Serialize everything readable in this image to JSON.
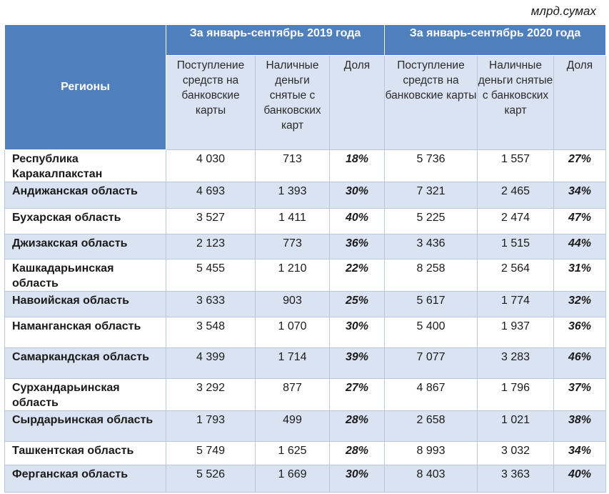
{
  "unit_label": "млрд.сумах",
  "header": {
    "regions_label": "Регионы",
    "period_2019": "За январь-сентябрь 2019 года",
    "period_2020": "За январь-сентябрь 2020 года",
    "col_income": "Поступление средств на банковские карты",
    "col_cash": "Наличные деньги снятые с банковских карт",
    "col_share": "Доля"
  },
  "rows": [
    {
      "region": "Республика Каракалпакстан",
      "v2019_in": "4 030",
      "v2019_cash": "713",
      "v2019_share": "18%",
      "v2020_in": "5 736",
      "v2020_cash": "1 557",
      "v2020_share": "27%"
    },
    {
      "region": "Андижанская область",
      "v2019_in": "4 693",
      "v2019_cash": "1 393",
      "v2019_share": "30%",
      "v2020_in": "7 321",
      "v2020_cash": "2 465",
      "v2020_share": "34%"
    },
    {
      "region": "Бухарская область",
      "v2019_in": "3 527",
      "v2019_cash": "1 411",
      "v2019_share": "40%",
      "v2020_in": "5 225",
      "v2020_cash": "2 474",
      "v2020_share": "47%"
    },
    {
      "region": "Джизакская область",
      "v2019_in": "2 123",
      "v2019_cash": "773",
      "v2019_share": "36%",
      "v2020_in": "3 436",
      "v2020_cash": "1 515",
      "v2020_share": "44%"
    },
    {
      "region": "Кашкадарьинская область",
      "v2019_in": "5 455",
      "v2019_cash": "1 210",
      "v2019_share": "22%",
      "v2020_in": "8 258",
      "v2020_cash": "2 564",
      "v2020_share": "31%"
    },
    {
      "region": "Навоийская область",
      "v2019_in": "3 633",
      "v2019_cash": "903",
      "v2019_share": "25%",
      "v2020_in": "5 617",
      "v2020_cash": "1 774",
      "v2020_share": "32%"
    },
    {
      "region": "Наманганская область",
      "v2019_in": "3 548",
      "v2019_cash": "1 070",
      "v2019_share": "30%",
      "v2020_in": "5 400",
      "v2020_cash": "1 937",
      "v2020_share": "36%"
    },
    {
      "region": "Самаркандская область",
      "v2019_in": "4 399",
      "v2019_cash": "1 714",
      "v2019_share": "39%",
      "v2020_in": "7 077",
      "v2020_cash": "3 283",
      "v2020_share": "46%"
    },
    {
      "region": "Сурхандарьинская область",
      "v2019_in": "3 292",
      "v2019_cash": "877",
      "v2019_share": "27%",
      "v2020_in": "4 867",
      "v2020_cash": "1 796",
      "v2020_share": "37%"
    },
    {
      "region": "Сырдарьинская область",
      "v2019_in": "1 793",
      "v2019_cash": "499",
      "v2019_share": "28%",
      "v2020_in": "2 658",
      "v2020_cash": "1 021",
      "v2020_share": "38%"
    },
    {
      "region": "Ташкентская область",
      "v2019_in": "5 749",
      "v2019_cash": "1 625",
      "v2019_share": "28%",
      "v2020_in": "8 993",
      "v2020_cash": "3 032",
      "v2020_share": "34%"
    },
    {
      "region": "Ферганская область",
      "v2019_in": "5 526",
      "v2019_cash": "1 669",
      "v2019_share": "30%",
      "v2020_in": "8 403",
      "v2020_cash": "3 363",
      "v2020_share": "40%"
    }
  ],
  "colors": {
    "header_blue": "#4f80bd",
    "band_light": "#dae3f1"
  }
}
